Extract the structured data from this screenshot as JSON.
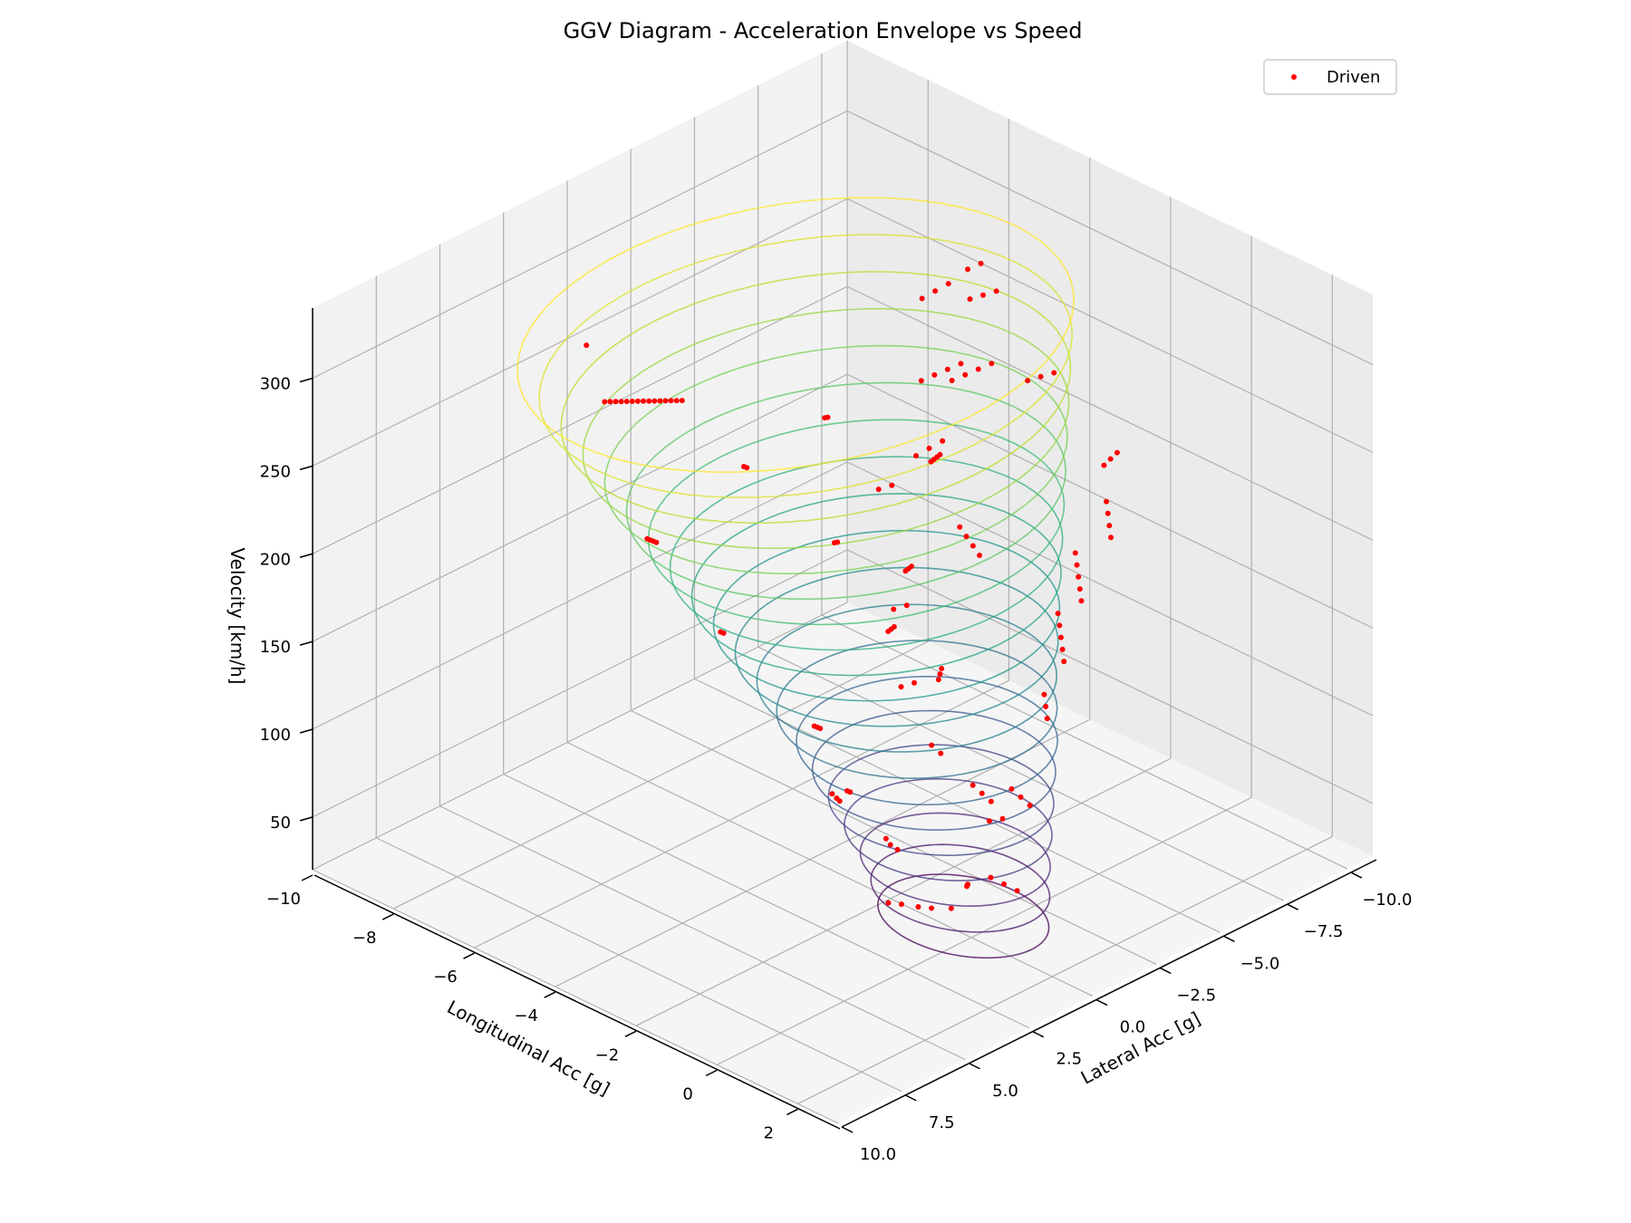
{
  "chart_data": {
    "type": "scatter",
    "title": "GGV Diagram - Acceleration Envelope vs Speed",
    "xlabel": "Longitudinal Acc [g]",
    "ylabel": "Lateral Acc [g]",
    "zlabel": "Velocity [km/h]",
    "xlim": [
      -10,
      3
    ],
    "ylim": [
      -11,
      10
    ],
    "zlim": [
      20,
      340
    ],
    "x_ticks": [
      -10,
      -8,
      -6,
      -4,
      -2,
      0,
      2
    ],
    "y_ticks": [
      -10.0,
      -7.5,
      -5.0,
      -2.5,
      0.0,
      2.5,
      5.0,
      7.5,
      10.0
    ],
    "z_ticks": [
      50,
      100,
      150,
      200,
      250,
      300
    ],
    "x_tick_labels": [
      "−10",
      "−8",
      "−6",
      "−4",
      "−2",
      "0",
      "2"
    ],
    "y_tick_labels": [
      "−10.0",
      "−7.5",
      "−5.0",
      "−2.5",
      "0.0",
      "2.5",
      "5.0",
      "7.5",
      "10.0"
    ],
    "z_tick_labels": [
      "50",
      "100",
      "150",
      "200",
      "250",
      "300"
    ],
    "grid": true,
    "legend": {
      "placement": "top-right",
      "entries": [
        "Driven"
      ]
    },
    "colors": {
      "driven": "#ff0000",
      "pane": "#f2f2f2",
      "grid": "#b0b0b0",
      "colormap": "viridis"
    },
    "envelope": {
      "description_hidden": true,
      "speeds": [
        30,
        45,
        60,
        75,
        90,
        105,
        120,
        135,
        150,
        165,
        180,
        195,
        210,
        225,
        240,
        255,
        270,
        285,
        300,
        315
      ],
      "long_min": [
        -1.9,
        -2.0,
        -2.2,
        -2.5,
        -2.8,
        -3.1,
        -3.4,
        -3.8,
        -4.2,
        -4.6,
        -5.0,
        -5.4,
        -5.8,
        -6.2,
        -6.6,
        -7.0,
        -7.4,
        -7.8,
        -8.2,
        -8.6
      ],
      "long_max": [
        1.5,
        1.45,
        1.4,
        1.35,
        1.3,
        1.25,
        1.2,
        1.1,
        1.0,
        0.9,
        0.8,
        0.7,
        0.6,
        0.5,
        0.4,
        0.3,
        0.2,
        0.1,
        0.0,
        -0.1
      ],
      "lat_max": [
        2.0,
        2.2,
        2.4,
        2.7,
        3.0,
        3.3,
        3.6,
        3.9,
        4.2,
        4.6,
        5.0,
        5.4,
        5.8,
        6.2,
        6.6,
        7.0,
        7.4,
        7.8,
        8.2,
        8.6
      ]
    },
    "series": [
      {
        "name": "Driven",
        "points": [
          [
            -1.0,
            0.5,
            30
          ],
          [
            -0.8,
            0.3,
            30
          ],
          [
            -0.5,
            0.0,
            31
          ],
          [
            -1.3,
            1.2,
            34
          ],
          [
            -1.1,
            1.0,
            34
          ],
          [
            0.5,
            -1.0,
            45
          ],
          [
            0.3,
            -0.8,
            48
          ],
          [
            0.1,
            -0.6,
            51
          ],
          [
            -1.8,
            0.5,
            60
          ],
          [
            -1.5,
            0.8,
            62
          ],
          [
            -1.2,
            1.0,
            64
          ],
          [
            0.2,
            0.5,
            55
          ],
          [
            0.4,
            0.8,
            60
          ],
          [
            0.6,
            1.1,
            65
          ],
          [
            -0.5,
            -1.5,
            70
          ],
          [
            -0.3,
            -1.7,
            72
          ],
          [
            -2.5,
            1.5,
            85
          ],
          [
            -2.2,
            1.8,
            88
          ],
          [
            -2.0,
            2.0,
            90
          ],
          [
            0.5,
            -1.5,
            90
          ],
          [
            0.4,
            -1.3,
            95
          ],
          [
            0.3,
            -1.1,
            100
          ],
          [
            -1.5,
            2.5,
            105
          ],
          [
            -1.3,
            2.7,
            108
          ],
          [
            0.8,
            0.5,
            110
          ],
          [
            0.7,
            0.7,
            115
          ],
          [
            0.6,
            0.9,
            120
          ],
          [
            -3.0,
            -2.0,
            115
          ],
          [
            -2.8,
            -2.2,
            118
          ],
          [
            0.3,
            -2.5,
            130
          ],
          [
            0.2,
            -2.6,
            135
          ],
          [
            0.1,
            -2.7,
            140
          ],
          [
            -2.0,
            3.0,
            140
          ],
          [
            -1.8,
            3.2,
            143
          ],
          [
            -1.6,
            3.4,
            146
          ],
          [
            0.5,
            2.0,
            145
          ],
          [
            0.4,
            2.2,
            150
          ],
          [
            -3.5,
            -2.5,
            150
          ],
          [
            -3.3,
            -2.7,
            153
          ],
          [
            0.4,
            -3.0,
            160
          ],
          [
            0.3,
            -3.1,
            165
          ],
          [
            0.2,
            -3.2,
            170
          ],
          [
            0.1,
            -3.3,
            175
          ],
          [
            0.0,
            -3.4,
            180
          ],
          [
            -0.5,
            0.5,
            165
          ],
          [
            -0.4,
            0.6,
            170
          ],
          [
            -0.3,
            0.7,
            175
          ],
          [
            -4.0,
            3.5,
            175
          ],
          [
            -3.8,
            3.7,
            178
          ],
          [
            0.2,
            -4.0,
            185
          ],
          [
            0.1,
            -4.1,
            190
          ],
          [
            0.0,
            -4.2,
            195
          ],
          [
            -0.1,
            -4.3,
            200
          ],
          [
            -0.2,
            -4.4,
            205
          ],
          [
            -4.5,
            -3.5,
            200
          ],
          [
            -4.3,
            -3.7,
            203
          ],
          [
            -0.8,
            2.0,
            200
          ],
          [
            -0.6,
            2.2,
            205
          ],
          [
            -0.4,
            2.4,
            210
          ],
          [
            0.3,
            -5.0,
            215
          ],
          [
            0.2,
            -5.1,
            220
          ],
          [
            0.1,
            -5.2,
            225
          ],
          [
            0.0,
            -5.3,
            230
          ],
          [
            -5.5,
            4.0,
            215
          ],
          [
            -5.3,
            4.2,
            218
          ],
          [
            -5.1,
            4.4,
            221
          ],
          [
            -4.9,
            4.6,
            224
          ],
          [
            -1.0,
            1.0,
            225
          ],
          [
            -0.8,
            1.2,
            230
          ],
          [
            -0.6,
            1.4,
            235
          ],
          [
            0.2,
            0.0,
            240
          ],
          [
            0.1,
            0.1,
            245
          ],
          [
            0.0,
            0.2,
            250
          ],
          [
            -0.1,
            0.3,
            255
          ],
          [
            -5.0,
            1.0,
            240
          ],
          [
            -4.8,
            1.2,
            243
          ],
          [
            -0.5,
            -6.0,
            240
          ],
          [
            -0.4,
            -6.1,
            244
          ],
          [
            -0.3,
            -6.2,
            248
          ],
          [
            -1.5,
            3.0,
            250
          ],
          [
            -1.3,
            3.2,
            254
          ],
          [
            -7.5,
            2.5,
            260
          ],
          [
            -7.3,
            2.6,
            263
          ],
          [
            -7.1,
            2.7,
            266
          ],
          [
            -6.9,
            2.8,
            269
          ],
          [
            -6.7,
            2.9,
            272
          ],
          [
            -6.5,
            3.0,
            275
          ],
          [
            -6.3,
            3.1,
            278
          ],
          [
            -6.1,
            3.2,
            281
          ],
          [
            -5.9,
            3.3,
            284
          ],
          [
            -5.7,
            3.4,
            287
          ],
          [
            -5.5,
            3.5,
            290
          ],
          [
            -5.3,
            3.6,
            293
          ],
          [
            -5.1,
            3.7,
            296
          ],
          [
            -4.9,
            3.8,
            299
          ],
          [
            -4.7,
            3.9,
            302
          ],
          [
            -6.5,
            4.8,
            320
          ],
          [
            -2.0,
            -1.0,
            265
          ],
          [
            -1.8,
            -1.2,
            270
          ],
          [
            -1.6,
            -1.4,
            275
          ],
          [
            -3.0,
            -4.0,
            275
          ],
          [
            -2.8,
            -4.2,
            279
          ],
          [
            -2.6,
            -4.4,
            283
          ],
          [
            -2.4,
            -4.6,
            287
          ],
          [
            -1.0,
            0.0,
            280
          ],
          [
            -0.8,
            0.2,
            285
          ],
          [
            -0.6,
            0.4,
            290
          ],
          [
            -0.4,
            0.6,
            295
          ],
          [
            -5.0,
            -6.0,
            285
          ],
          [
            -4.8,
            -6.2,
            290
          ],
          [
            -4.6,
            -6.4,
            295
          ],
          [
            -2.5,
            -2.0,
            295
          ],
          [
            -2.3,
            -2.2,
            299
          ],
          [
            -2.1,
            -2.4,
            303
          ],
          [
            -1.9,
            -2.6,
            307
          ],
          [
            -3.5,
            -5.5,
            305
          ],
          [
            -3.3,
            -5.7,
            308
          ],
          [
            -3.1,
            -5.9,
            311
          ],
          [
            -4.5,
            -7.0,
            300
          ],
          [
            -4.3,
            -7.2,
            304
          ],
          [
            -0.5,
            -3.0,
            310
          ],
          [
            -0.3,
            -3.2,
            313
          ],
          [
            -0.1,
            -3.4,
            316
          ],
          [
            -3.0,
            1.0,
            290
          ],
          [
            -2.8,
            1.2,
            294
          ]
        ]
      }
    ]
  }
}
